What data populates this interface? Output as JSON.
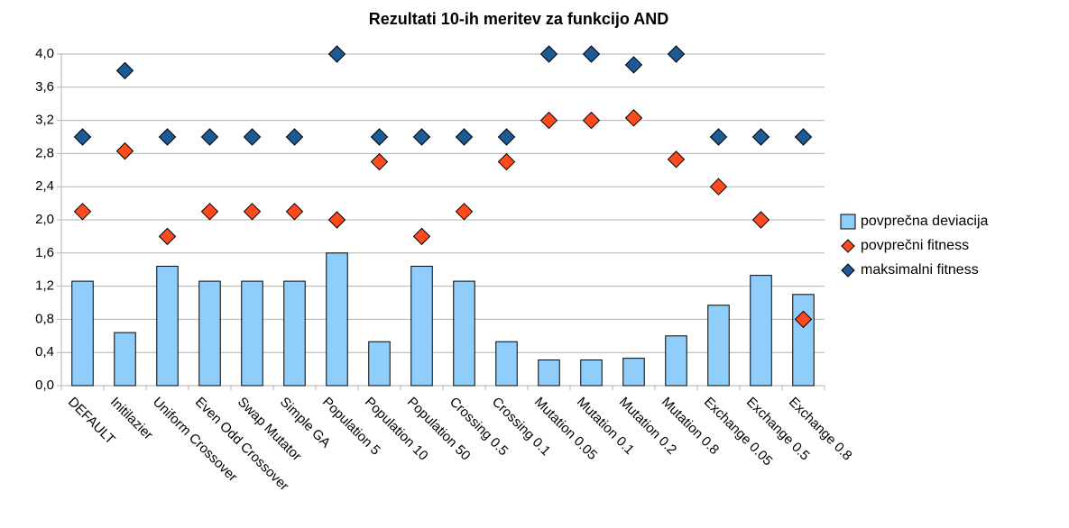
{
  "chart_data": {
    "type": "bar",
    "title": "Rezultati 10-ih meritev za funkcijo AND",
    "categories": [
      "DEFAULT",
      "Initilazier",
      "Uniform Crossover",
      "Even Odd Crossover",
      "Swap Mutator",
      "Simple GA",
      "Population 5",
      "Population 10",
      "Population 50",
      "Crossing 0.5",
      "Crossing 0.1",
      "Mutation 0.05",
      "Mutation 0.1",
      "Mutation 0.2",
      "Mutation 0.8",
      "Exchange 0.05",
      "Exchange 0.5",
      "Exchange 0.8"
    ],
    "series": [
      {
        "name": "povprečna deviacija",
        "type": "bar",
        "color": "#8fcdfb",
        "values": [
          1.26,
          0.64,
          1.44,
          1.26,
          1.26,
          1.26,
          1.6,
          0.53,
          1.44,
          1.26,
          0.53,
          0.31,
          0.31,
          0.33,
          0.6,
          0.97,
          1.33,
          1.1
        ]
      },
      {
        "name": "povprečni fitness",
        "type": "scatter",
        "color": "#ff4a1c",
        "values": [
          2.1,
          2.83,
          1.8,
          2.1,
          2.1,
          2.1,
          2.0,
          2.7,
          1.8,
          2.1,
          2.7,
          3.2,
          3.2,
          3.23,
          2.73,
          2.4,
          2.0,
          0.8
        ]
      },
      {
        "name": "maksimalni fitness",
        "type": "scatter",
        "color": "#1c5a96",
        "values": [
          3.0,
          3.8,
          3.0,
          3.0,
          3.0,
          3.0,
          4.0,
          3.0,
          3.0,
          3.0,
          3.0,
          4.0,
          4.0,
          3.87,
          4.0,
          3.0,
          3.0,
          3.0
        ]
      }
    ],
    "ylim": [
      0,
      4
    ],
    "yticks": [
      {
        "value": 0,
        "label": "0,0"
      },
      {
        "value": 0.4,
        "label": "0,4"
      },
      {
        "value": 0.8,
        "label": "0,8"
      },
      {
        "value": 1.2,
        "label": "1,2"
      },
      {
        "value": 1.6,
        "label": "1,6"
      },
      {
        "value": 2.0,
        "label": "2,0"
      },
      {
        "value": 2.4,
        "label": "2,4"
      },
      {
        "value": 2.8,
        "label": "2,8"
      },
      {
        "value": 3.2,
        "label": "3,2"
      },
      {
        "value": 3.6,
        "label": "3,6"
      },
      {
        "value": 4.0,
        "label": "4,0"
      }
    ],
    "grid": true,
    "legend": "right"
  }
}
